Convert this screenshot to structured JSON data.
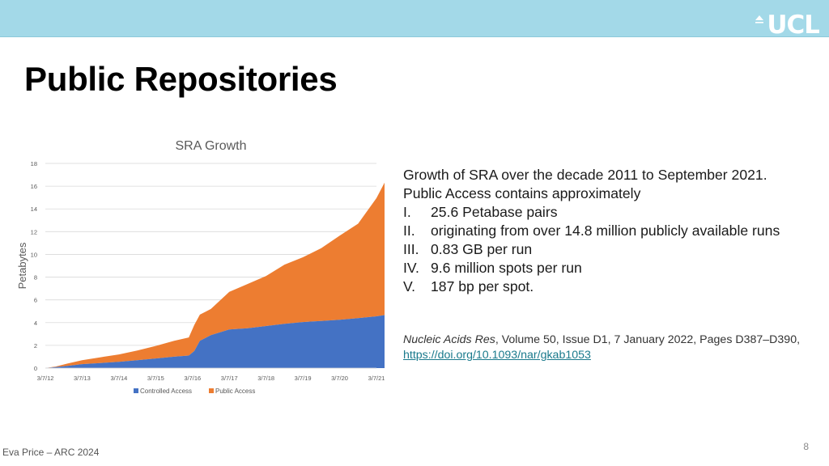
{
  "header": {
    "logo_text": "UCL",
    "logo_icon": "portico-dome-icon"
  },
  "slide": {
    "title": "Public Repositories",
    "footer": "Eva Price – ARC 2024",
    "page_number": "8"
  },
  "info": {
    "intro": "Growth of SRA over the decade 2011 to September 2021. Public Access contains approximately",
    "items": [
      {
        "num": "I.",
        "text": "25.6 Petabase pairs"
      },
      {
        "num": "II.",
        "text": "originating from over 14.8 million publicly available runs"
      },
      {
        "num": "III.",
        "text": "0.83 GB per run"
      },
      {
        "num": "IV.",
        "text": "9.6 million spots per run"
      },
      {
        "num": "V.",
        "text": "187 bp per spot."
      }
    ]
  },
  "citation": {
    "journal": "Nucleic Acids Res",
    "details": ", Volume 50, Issue D1, 7 January 2022, Pages D387–D390, ",
    "doi": "https://doi.org/10.1093/nar/gkab1053"
  },
  "chart_data": {
    "type": "area",
    "stacked": true,
    "title": "SRA Growth",
    "xlabel": "",
    "ylabel": "Petabytes",
    "ylim": [
      0,
      18
    ],
    "yticks": [
      0,
      2,
      4,
      6,
      8,
      10,
      12,
      14,
      16,
      18
    ],
    "xticks": [
      "3/7/12",
      "3/7/13",
      "3/7/14",
      "3/7/15",
      "3/7/16",
      "3/7/17",
      "3/7/18",
      "3/7/19",
      "3/7/20",
      "3/7/21"
    ],
    "grid": true,
    "legend": "bottom",
    "series": [
      {
        "name": "Controlled Access",
        "color": "#4472c4",
        "points": [
          [
            0,
            0
          ],
          [
            0.3,
            0.1
          ],
          [
            0.6,
            0.2
          ],
          [
            1,
            0.35
          ],
          [
            1.5,
            0.45
          ],
          [
            2,
            0.55
          ],
          [
            2.5,
            0.7
          ],
          [
            3,
            0.85
          ],
          [
            3.5,
            1
          ],
          [
            3.9,
            1.1
          ],
          [
            4.05,
            1.5
          ],
          [
            4.2,
            2.4
          ],
          [
            4.5,
            2.9
          ],
          [
            5,
            3.4
          ],
          [
            5.5,
            3.5
          ],
          [
            6,
            3.7
          ],
          [
            6.5,
            3.9
          ],
          [
            7,
            4.05
          ],
          [
            7.5,
            4.15
          ],
          [
            8,
            4.25
          ],
          [
            8.5,
            4.4
          ],
          [
            9,
            4.55
          ],
          [
            9.3,
            4.7
          ]
        ]
      },
      {
        "name": "Public  Access",
        "color": "#ed7d31",
        "points": [
          [
            0,
            0
          ],
          [
            0.3,
            0.05
          ],
          [
            0.6,
            0.2
          ],
          [
            1,
            0.35
          ],
          [
            1.5,
            0.5
          ],
          [
            2,
            0.65
          ],
          [
            2.5,
            0.85
          ],
          [
            3,
            1.1
          ],
          [
            3.5,
            1.4
          ],
          [
            3.9,
            1.6
          ],
          [
            4.05,
            2.3
          ],
          [
            4.2,
            2.3
          ],
          [
            4.5,
            2.3
          ],
          [
            5,
            3.3
          ],
          [
            5.5,
            3.9
          ],
          [
            6,
            4.4
          ],
          [
            6.5,
            5.2
          ],
          [
            7,
            5.7
          ],
          [
            7.5,
            6.4
          ],
          [
            8,
            7.4
          ],
          [
            8.5,
            8.3
          ],
          [
            9,
            10.4
          ],
          [
            9.3,
            12.1
          ]
        ]
      }
    ]
  }
}
